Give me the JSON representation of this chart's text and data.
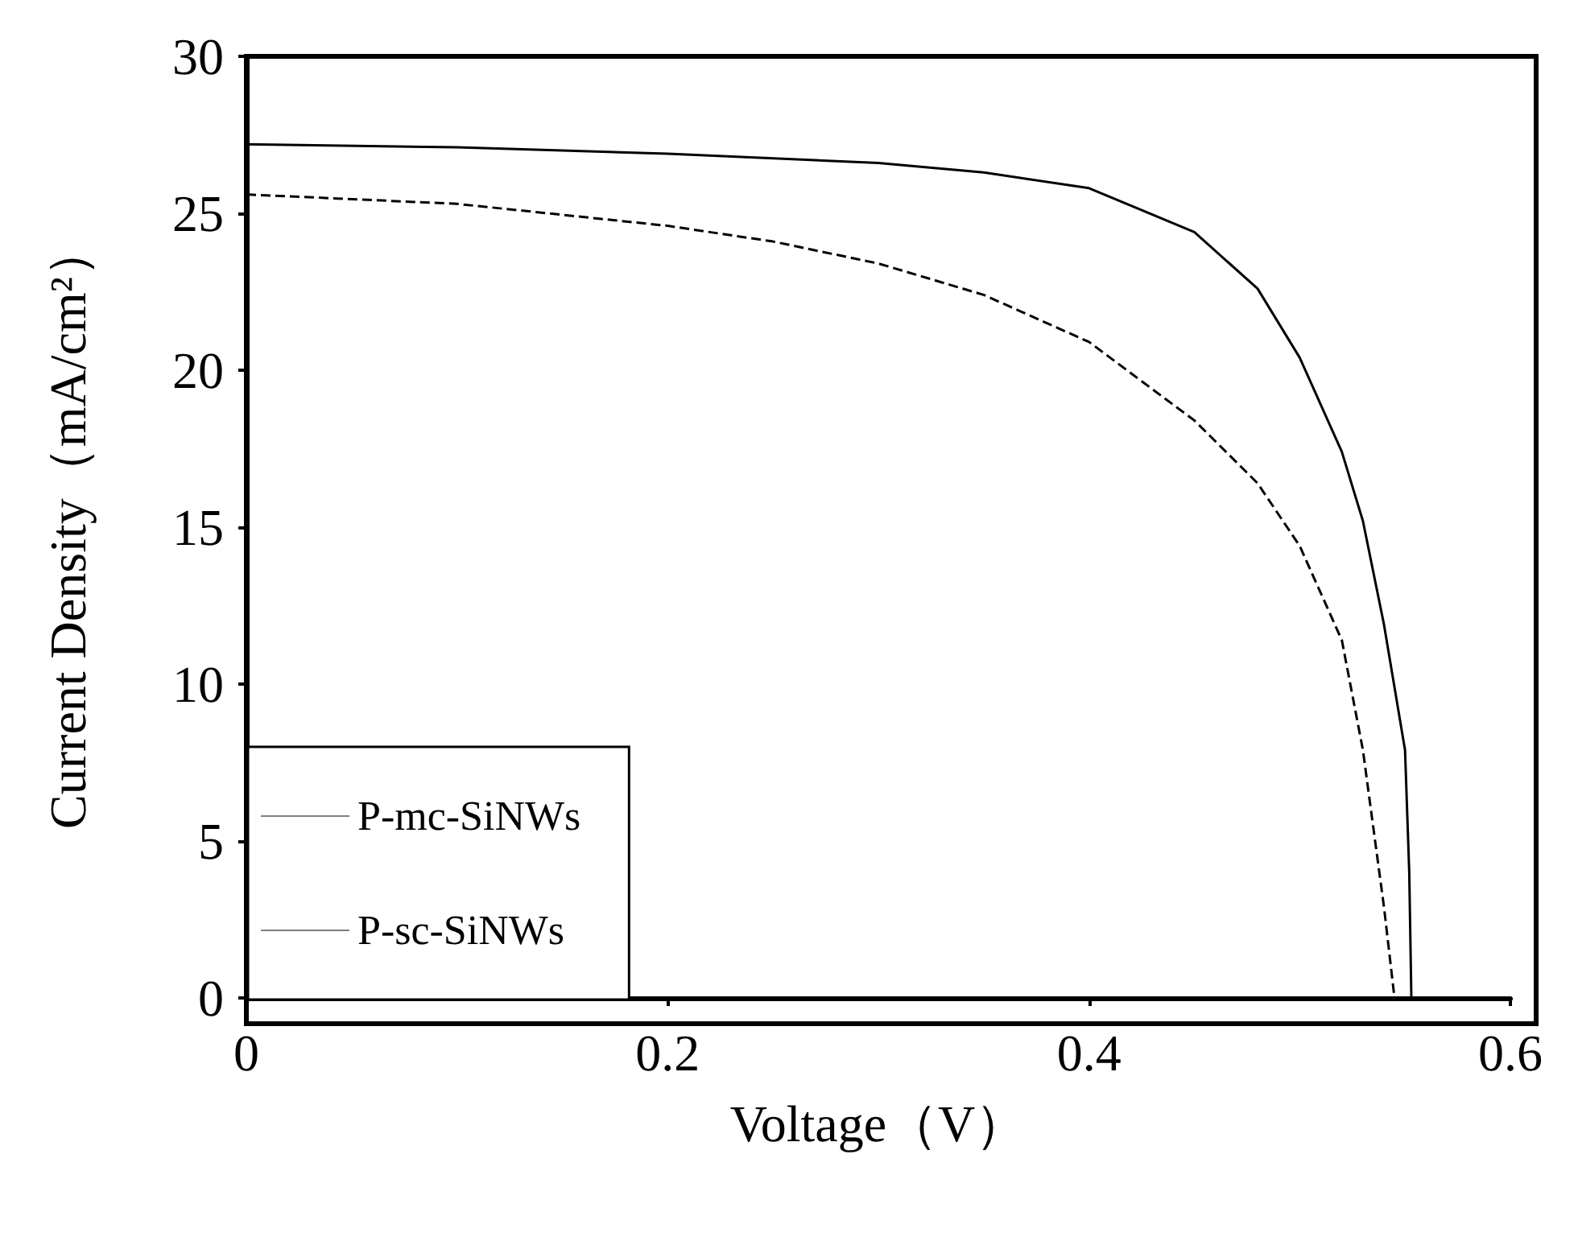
{
  "chart_data": {
    "type": "line",
    "xlabel": "Voltage（V）",
    "ylabel": "Current Density（mA/cm²）",
    "xlim": [
      0,
      0.6
    ],
    "xticks": [
      0,
      0.2,
      0.4,
      0.6
    ],
    "ylim": [
      0,
      30
    ],
    "yticks": [
      0,
      5,
      10,
      15,
      20,
      25,
      30
    ],
    "grid": false,
    "legend": "bottom left",
    "marker": "none",
    "series": [
      {
        "name": "P-mc-SiNWs",
        "color": "#000000",
        "line_style": "solid",
        "x": [
          0,
          0.1,
          0.2,
          0.3,
          0.35,
          0.4,
          0.45,
          0.48,
          0.5,
          0.52,
          0.53,
          0.54,
          0.55,
          0.552,
          0.553
        ],
        "values": [
          27.2,
          27.1,
          26.9,
          26.6,
          26.3,
          25.8,
          24.4,
          22.6,
          20.4,
          17.4,
          15.2,
          11.9,
          7.9,
          4,
          0
        ]
      },
      {
        "name": "P-sc-SiNWs",
        "color": "#000000",
        "line_style": "dashed",
        "x": [
          0,
          0.1,
          0.2,
          0.25,
          0.3,
          0.35,
          0.4,
          0.45,
          0.48,
          0.5,
          0.52,
          0.53,
          0.535,
          0.54,
          0.545
        ],
        "values": [
          25.6,
          25.3,
          24.6,
          24.1,
          23.4,
          22.4,
          20.9,
          18.4,
          16.4,
          14.4,
          11.4,
          7.9,
          5.4,
          2.9,
          0
        ]
      }
    ]
  }
}
